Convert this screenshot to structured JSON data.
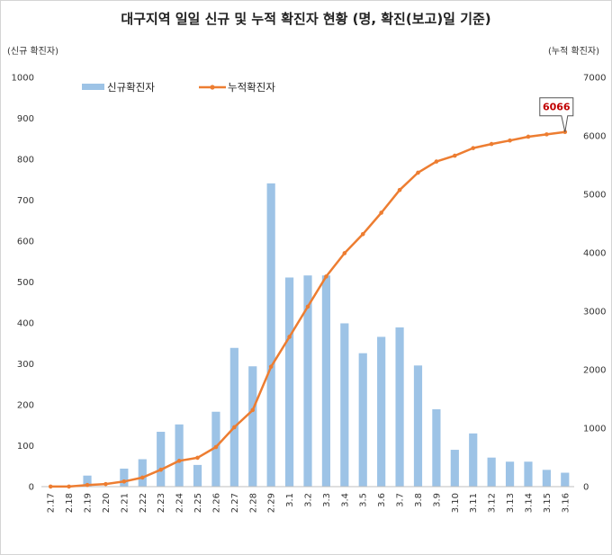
{
  "chart_data": {
    "type": "bar",
    "title": "대구지역 일일 신규 및 누적 확진자 현황 (명, 확진(보고)일 기준)",
    "ylabel_left": "(신규 확진자)",
    "ylabel_right": "(누적 확진자)",
    "ylim_left": [
      0,
      1000
    ],
    "yticks_left": [
      "0",
      "100",
      "200",
      "300",
      "400",
      "500",
      "600",
      "700",
      "800",
      "900",
      "1000"
    ],
    "ylim_right": [
      0,
      7000
    ],
    "yticks_right": [
      "0",
      "1000",
      "2000",
      "3000",
      "4000",
      "5000",
      "6000",
      "7000"
    ],
    "grid": false,
    "legend_position": "top-left",
    "categories": [
      "2.17",
      "2.18",
      "2.19",
      "2.20",
      "2.21",
      "2.22",
      "2.23",
      "2.24",
      "2.25",
      "2.26",
      "2.27",
      "2.28",
      "2.29",
      "3.1",
      "3.2",
      "3.3",
      "3.4",
      "3.5",
      "3.6",
      "3.7",
      "3.8",
      "3.9",
      "3.10",
      "3.11",
      "3.12",
      "3.13",
      "3.14",
      "3.15",
      "3.16"
    ],
    "series": [
      {
        "name": "신규확진자",
        "type": "bar",
        "axis": "left",
        "color": "#9dc3e6",
        "values": [
          0,
          0,
          27,
          0,
          44,
          67,
          134,
          152,
          53,
          183,
          339,
          294,
          741,
          511,
          516,
          516,
          399,
          326,
          366,
          389,
          296,
          189,
          90,
          130,
          71,
          61,
          61,
          41,
          34
        ]
      },
      {
        "name": "누적확진자",
        "type": "line",
        "axis": "right",
        "color": "#ed7d31",
        "values": [
          1,
          1,
          28,
          44,
          88,
          155,
          289,
          441,
          494,
          677,
          1016,
          1310,
          2051,
          2562,
          3078,
          3594,
          3993,
          4319,
          4685,
          5074,
          5370,
          5560,
          5660,
          5790,
          5860,
          5920,
          5985,
          6025,
          6066
        ]
      }
    ],
    "annotations": [
      {
        "text": "6066",
        "category": "3.16",
        "series": "누적확진자",
        "color": "#c00000"
      }
    ]
  }
}
